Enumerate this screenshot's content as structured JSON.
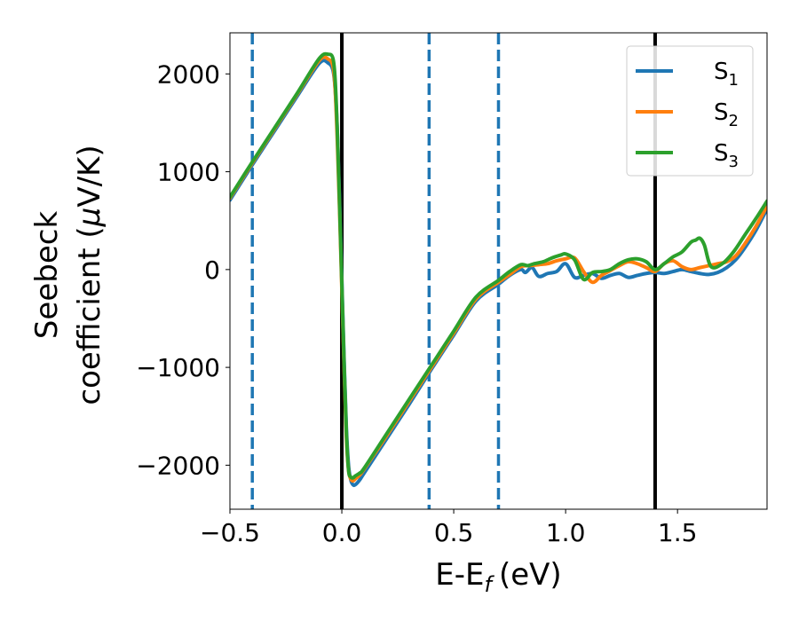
{
  "chart_data": {
    "type": "line",
    "xlabel": "E-E",
    "xlabel_sub": "f",
    "xlabel_unit": "(eV)",
    "ylabel_line1": "Seebeck",
    "ylabel_line2": "coefficient  (",
    "ylabel_mu": "μ",
    "ylabel_unit": "V/K)",
    "xlim": [
      -0.5,
      1.9
    ],
    "ylim": [
      -2450,
      2420
    ],
    "xticks": [
      -0.5,
      0.0,
      0.5,
      1.0,
      1.5
    ],
    "xtick_labels": [
      "−0.5",
      "0.0",
      "0.5",
      "1.0",
      "1.5"
    ],
    "yticks": [
      2000,
      1000,
      0,
      -1000,
      -2000
    ],
    "ytick_labels": [
      "2000",
      "1000",
      "0",
      "−1000",
      "−2000"
    ],
    "grid": false,
    "legend_position": "top-right",
    "vlines": [
      {
        "x": -0.4,
        "style": "dashed",
        "color": "#1f77b4"
      },
      {
        "x": 0.0,
        "style": "solid",
        "color": "#000000"
      },
      {
        "x": 0.39,
        "style": "dashed",
        "color": "#1f77b4"
      },
      {
        "x": 0.7,
        "style": "dashed",
        "color": "#1f77b4"
      },
      {
        "x": 1.4,
        "style": "solid",
        "color": "#000000"
      }
    ],
    "series": [
      {
        "name": "S",
        "sub": "1",
        "color": "#1f77b4",
        "x": [
          -0.5,
          -0.4,
          -0.3,
          -0.2,
          -0.1,
          -0.06,
          -0.04,
          -0.03,
          -0.02,
          -0.01,
          0.0,
          0.01,
          0.02,
          0.03,
          0.04,
          0.05,
          0.06,
          0.08,
          0.1,
          0.2,
          0.3,
          0.4,
          0.5,
          0.6,
          0.7,
          0.75,
          0.8,
          0.82,
          0.85,
          0.88,
          0.92,
          0.96,
          1.0,
          1.04,
          1.08,
          1.12,
          1.16,
          1.2,
          1.24,
          1.28,
          1.32,
          1.36,
          1.4,
          1.44,
          1.48,
          1.52,
          1.56,
          1.6,
          1.64,
          1.68,
          1.72,
          1.76,
          1.8,
          1.85,
          1.9
        ],
        "y": [
          710,
          1070,
          1420,
          1770,
          2110,
          2110,
          2040,
          1850,
          1400,
          700,
          -100,
          -900,
          -1600,
          -2000,
          -2150,
          -2200,
          -2200,
          -2150,
          -2080,
          -1730,
          -1380,
          -1020,
          -670,
          -320,
          -150,
          -60,
          0,
          -30,
          20,
          -70,
          -40,
          -20,
          60,
          -80,
          -60,
          -40,
          -90,
          -60,
          -40,
          -80,
          -60,
          -40,
          -30,
          -40,
          -20,
          0,
          -20,
          -40,
          -50,
          -30,
          20,
          100,
          220,
          400,
          620
        ]
      },
      {
        "name": "S",
        "sub": "2",
        "color": "#ff7f0e",
        "x": [
          -0.5,
          -0.4,
          -0.3,
          -0.2,
          -0.1,
          -0.06,
          -0.04,
          -0.03,
          -0.02,
          -0.01,
          0.0,
          0.01,
          0.02,
          0.03,
          0.04,
          0.05,
          0.06,
          0.08,
          0.1,
          0.2,
          0.3,
          0.4,
          0.5,
          0.6,
          0.7,
          0.75,
          0.8,
          0.84,
          0.88,
          0.92,
          0.96,
          1.0,
          1.04,
          1.08,
          1.12,
          1.16,
          1.2,
          1.24,
          1.28,
          1.32,
          1.36,
          1.4,
          1.44,
          1.48,
          1.52,
          1.56,
          1.6,
          1.64,
          1.68,
          1.72,
          1.76,
          1.8,
          1.85,
          1.9
        ],
        "y": [
          730,
          1090,
          1440,
          1790,
          2140,
          2150,
          2080,
          1850,
          1300,
          600,
          -200,
          -1000,
          -1700,
          -2050,
          -2140,
          -2160,
          -2140,
          -2100,
          -2040,
          -1700,
          -1350,
          -1000,
          -650,
          -300,
          -130,
          -50,
          30,
          40,
          50,
          60,
          90,
          110,
          120,
          -20,
          -130,
          -60,
          -10,
          40,
          80,
          60,
          20,
          -20,
          60,
          90,
          30,
          0,
          20,
          40,
          60,
          80,
          140,
          260,
          440,
          650
        ]
      },
      {
        "name": "S",
        "sub": "3",
        "color": "#2ca02c",
        "x": [
          -0.5,
          -0.4,
          -0.3,
          -0.2,
          -0.1,
          -0.06,
          -0.04,
          -0.03,
          -0.02,
          -0.01,
          0.0,
          0.01,
          0.02,
          0.03,
          0.04,
          0.05,
          0.06,
          0.08,
          0.1,
          0.2,
          0.3,
          0.4,
          0.5,
          0.6,
          0.7,
          0.75,
          0.8,
          0.83,
          0.86,
          0.9,
          0.94,
          0.98,
          1.0,
          1.04,
          1.08,
          1.12,
          1.16,
          1.2,
          1.24,
          1.28,
          1.32,
          1.36,
          1.4,
          1.44,
          1.48,
          1.52,
          1.56,
          1.58,
          1.6,
          1.62,
          1.65,
          1.7,
          1.75,
          1.8,
          1.85,
          1.9
        ],
        "y": [
          740,
          1100,
          1450,
          1800,
          2160,
          2200,
          2160,
          1950,
          1400,
          650,
          -150,
          -950,
          -1650,
          -2050,
          -2120,
          -2130,
          -2110,
          -2080,
          -2030,
          -1680,
          -1330,
          -980,
          -630,
          -280,
          -110,
          -20,
          50,
          40,
          60,
          80,
          120,
          150,
          160,
          100,
          -100,
          -30,
          -20,
          0,
          60,
          100,
          110,
          80,
          0,
          60,
          130,
          180,
          280,
          300,
          320,
          250,
          30,
          60,
          180,
          350,
          520,
          700
        ]
      }
    ]
  }
}
